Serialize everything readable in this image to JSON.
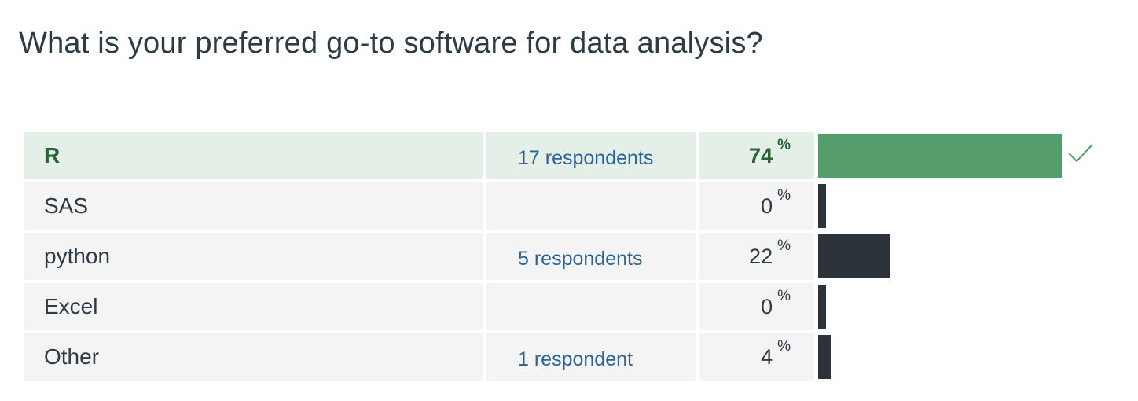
{
  "question": "What is your preferred go-to software for data analysis?",
  "answers": [
    {
      "label": "R",
      "respondents": "17 respondents",
      "percent": "74",
      "value": 74,
      "correct": true
    },
    {
      "label": "SAS",
      "respondents": "",
      "percent": "0",
      "value": 0,
      "correct": false
    },
    {
      "label": "python",
      "respondents": "5 respondents",
      "percent": "22",
      "value": 22,
      "correct": false
    },
    {
      "label": "Excel",
      "respondents": "",
      "percent": "0",
      "value": 0,
      "correct": false
    },
    {
      "label": "Other",
      "respondents": "1 respondent",
      "percent": "4",
      "value": 4,
      "correct": false
    }
  ],
  "percent_symbol": "%",
  "colors": {
    "correct_bar": "#559d6b",
    "bar": "#2d333b",
    "correct_row_bg": "#e4efe8",
    "row_bg": "#f4f4f4",
    "correct_text": "#276535",
    "respondent_link": "#2a6496"
  },
  "icons": {
    "correct_marker": "check-icon"
  }
}
